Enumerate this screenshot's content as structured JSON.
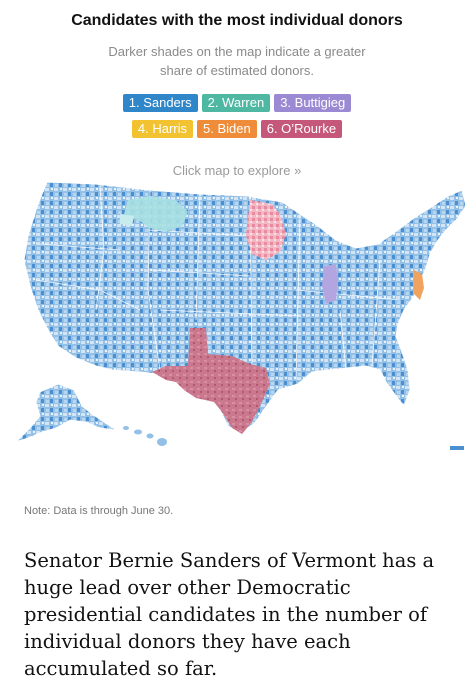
{
  "graphic": {
    "title": "Candidates with the most individual donors",
    "subtitle_line1": "Darker shades on the map indicate a greater",
    "subtitle_line2": "share of estimated donors.",
    "cta": "Click map to explore »"
  },
  "legend": [
    {
      "label": "1. Sanders",
      "color": "#2f86c9"
    },
    {
      "label": "2. Warren",
      "color": "#4fb8a2"
    },
    {
      "label": "3. Buttigieg",
      "color": "#9b8ad3"
    },
    {
      "label": "4. Harris",
      "color": "#f2c230"
    },
    {
      "label": "5. Biden",
      "color": "#ef8c3a"
    },
    {
      "label": "6. O’Rourke",
      "color": "#c5587a"
    }
  ],
  "map": {
    "palette": {
      "sanders_light": "#d3e5f5",
      "sanders_mid": "#93c0e6",
      "sanders_dark": "#4c8fd0",
      "warren": "#a9e0e2",
      "buttigieg": "#b3a5e0",
      "biden": "#f0a35f",
      "orourke": "#c9788e",
      "orourke_light": "#f2b9c5"
    }
  },
  "note": "Note: Data is through June 30.",
  "article": {
    "paragraph": "Senator Bernie Sanders of Vermont has a huge lead over other Democratic presidential candidates in the number of individual donors they have each accumulated so far."
  }
}
